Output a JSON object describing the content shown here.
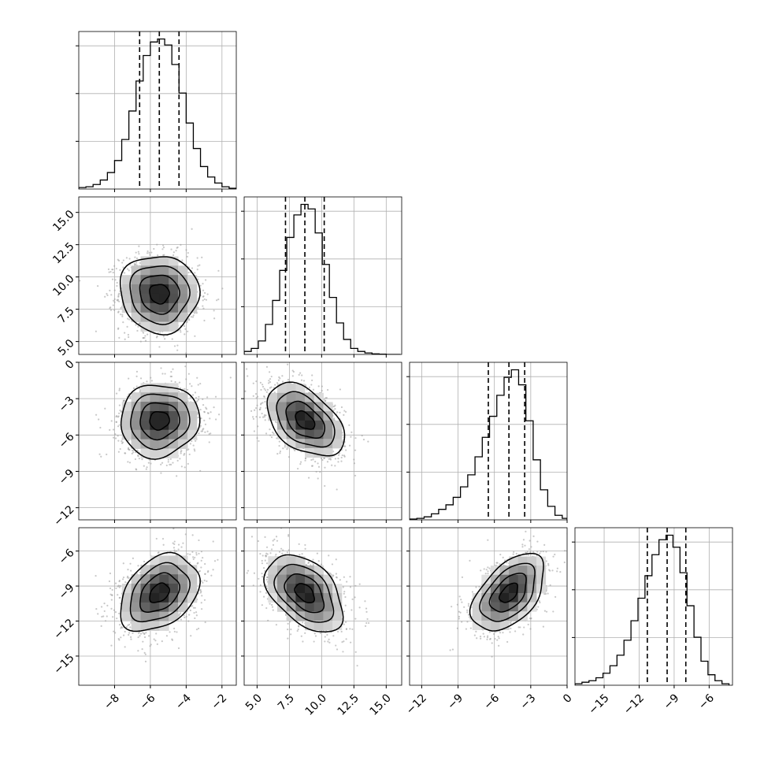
{
  "chart_data": {
    "type": "corner",
    "parameters": 4,
    "ranges": [
      [
        -10.0,
        -1.2
      ],
      [
        4.0,
        16.2
      ],
      [
        -13.0,
        0.0
      ],
      [
        -17.5,
        -4.0
      ]
    ],
    "ticks": [
      [
        -8,
        -6,
        -4,
        -2
      ],
      [
        5.0,
        7.5,
        10.0,
        12.5,
        15.0
      ],
      [
        -12,
        -9,
        -6,
        -3,
        0
      ],
      [
        -15,
        -12,
        -9,
        -6
      ]
    ],
    "tick_labels": [
      [
        "−8",
        "−6",
        "−4",
        "−2"
      ],
      [
        "5.0",
        "7.5",
        "10.0",
        "12.5",
        "15.0"
      ],
      [
        "−12",
        "−9",
        "−6",
        "−3",
        "0"
      ],
      [
        "−15",
        "−12",
        "−9",
        "−6"
      ]
    ],
    "grid": true,
    "marginals": [
      {
        "param": 0,
        "bin_edges": [
          -10.0,
          -9.6,
          -9.2,
          -8.8,
          -8.4,
          -8.0,
          -7.6,
          -7.2,
          -6.8,
          -6.4,
          -6.0,
          -5.6,
          -5.2,
          -4.8,
          -4.4,
          -4.0,
          -3.6,
          -3.2,
          -2.8,
          -2.4,
          -2.0,
          -1.6,
          -1.2
        ],
        "counts": [
          0.01,
          0.015,
          0.03,
          0.06,
          0.11,
          0.19,
          0.33,
          0.52,
          0.72,
          0.89,
          0.98,
          1.0,
          0.96,
          0.83,
          0.64,
          0.44,
          0.27,
          0.15,
          0.08,
          0.04,
          0.015,
          0.005
        ],
        "quantiles": [
          -6.6,
          -5.5,
          -4.4
        ]
      },
      {
        "param": 1,
        "bin_edges": [
          4.0,
          4.55,
          5.1,
          5.65,
          6.2,
          6.75,
          7.3,
          7.85,
          8.4,
          8.95,
          9.5,
          10.05,
          10.6,
          11.15,
          11.7,
          12.25,
          12.8,
          13.35,
          13.9,
          14.45,
          15.0,
          15.55,
          16.1
        ],
        "counts": [
          0.02,
          0.04,
          0.09,
          0.2,
          0.36,
          0.56,
          0.78,
          0.93,
          1.0,
          0.97,
          0.81,
          0.6,
          0.38,
          0.21,
          0.1,
          0.04,
          0.02,
          0.01,
          0.004,
          0.002,
          0.0,
          0.0
        ],
        "quantiles": [
          7.2,
          8.7,
          10.2
        ]
      },
      {
        "param": 2,
        "bin_edges": [
          -13.0,
          -12.4,
          -11.8,
          -11.2,
          -10.6,
          -10.0,
          -9.4,
          -8.8,
          -8.2,
          -7.6,
          -7.0,
          -6.4,
          -5.8,
          -5.2,
          -4.6,
          -4.0,
          -3.4,
          -2.8,
          -2.2,
          -1.6,
          -1.0,
          -0.4,
          0.0
        ],
        "counts": [
          0.005,
          0.01,
          0.02,
          0.04,
          0.07,
          0.1,
          0.15,
          0.22,
          0.3,
          0.42,
          0.55,
          0.69,
          0.83,
          0.95,
          1.0,
          0.9,
          0.66,
          0.4,
          0.2,
          0.09,
          0.03,
          0.01
        ],
        "quantiles": [
          -6.5,
          -4.8,
          -3.5
        ]
      },
      {
        "param": 3,
        "bin_edges": [
          -17.5,
          -16.9,
          -16.3,
          -15.7,
          -15.1,
          -14.5,
          -13.9,
          -13.3,
          -12.7,
          -12.1,
          -11.5,
          -10.9,
          -10.3,
          -9.7,
          -9.1,
          -8.5,
          -7.9,
          -7.3,
          -6.7,
          -6.1,
          -5.5,
          -4.9,
          -4.3
        ],
        "counts": [
          0.01,
          0.02,
          0.03,
          0.05,
          0.08,
          0.13,
          0.2,
          0.3,
          0.43,
          0.58,
          0.73,
          0.87,
          0.97,
          1.0,
          0.92,
          0.75,
          0.53,
          0.32,
          0.16,
          0.07,
          0.03,
          0.01
        ],
        "quantiles": [
          -11.3,
          -9.6,
          -8.0
        ]
      }
    ],
    "joints": [
      {
        "x_param": 0,
        "y_param": 1,
        "mean": [
          -5.5,
          8.7
        ],
        "sd": [
          1.1,
          1.5
        ],
        "rho": -0.05
      },
      {
        "x_param": 0,
        "y_param": 2,
        "mean": [
          -5.5,
          -4.8
        ],
        "sd": [
          1.1,
          1.5
        ],
        "rho": 0.05
      },
      {
        "x_param": 1,
        "y_param": 2,
        "mean": [
          8.7,
          -4.8
        ],
        "sd": [
          1.5,
          1.5
        ],
        "rho": -0.45
      },
      {
        "x_param": 0,
        "y_param": 3,
        "mean": [
          -5.5,
          -9.6
        ],
        "sd": [
          1.1,
          1.65
        ],
        "rho": 0.35
      },
      {
        "x_param": 1,
        "y_param": 3,
        "mean": [
          8.7,
          -9.6
        ],
        "sd": [
          1.5,
          1.65
        ],
        "rho": -0.45
      },
      {
        "x_param": 2,
        "y_param": 3,
        "mean": [
          -4.8,
          -9.6
        ],
        "sd": [
          1.5,
          1.65
        ],
        "rho": 0.5
      }
    ],
    "contour_levels_sigma": [
      0.5,
      1.0,
      1.5,
      2.0
    ],
    "colors": {
      "line": "#000000",
      "grid": "#b0b0b0",
      "points": "#9a9a9a",
      "density_dark": "#111111",
      "density_light": "#ffffff"
    }
  }
}
